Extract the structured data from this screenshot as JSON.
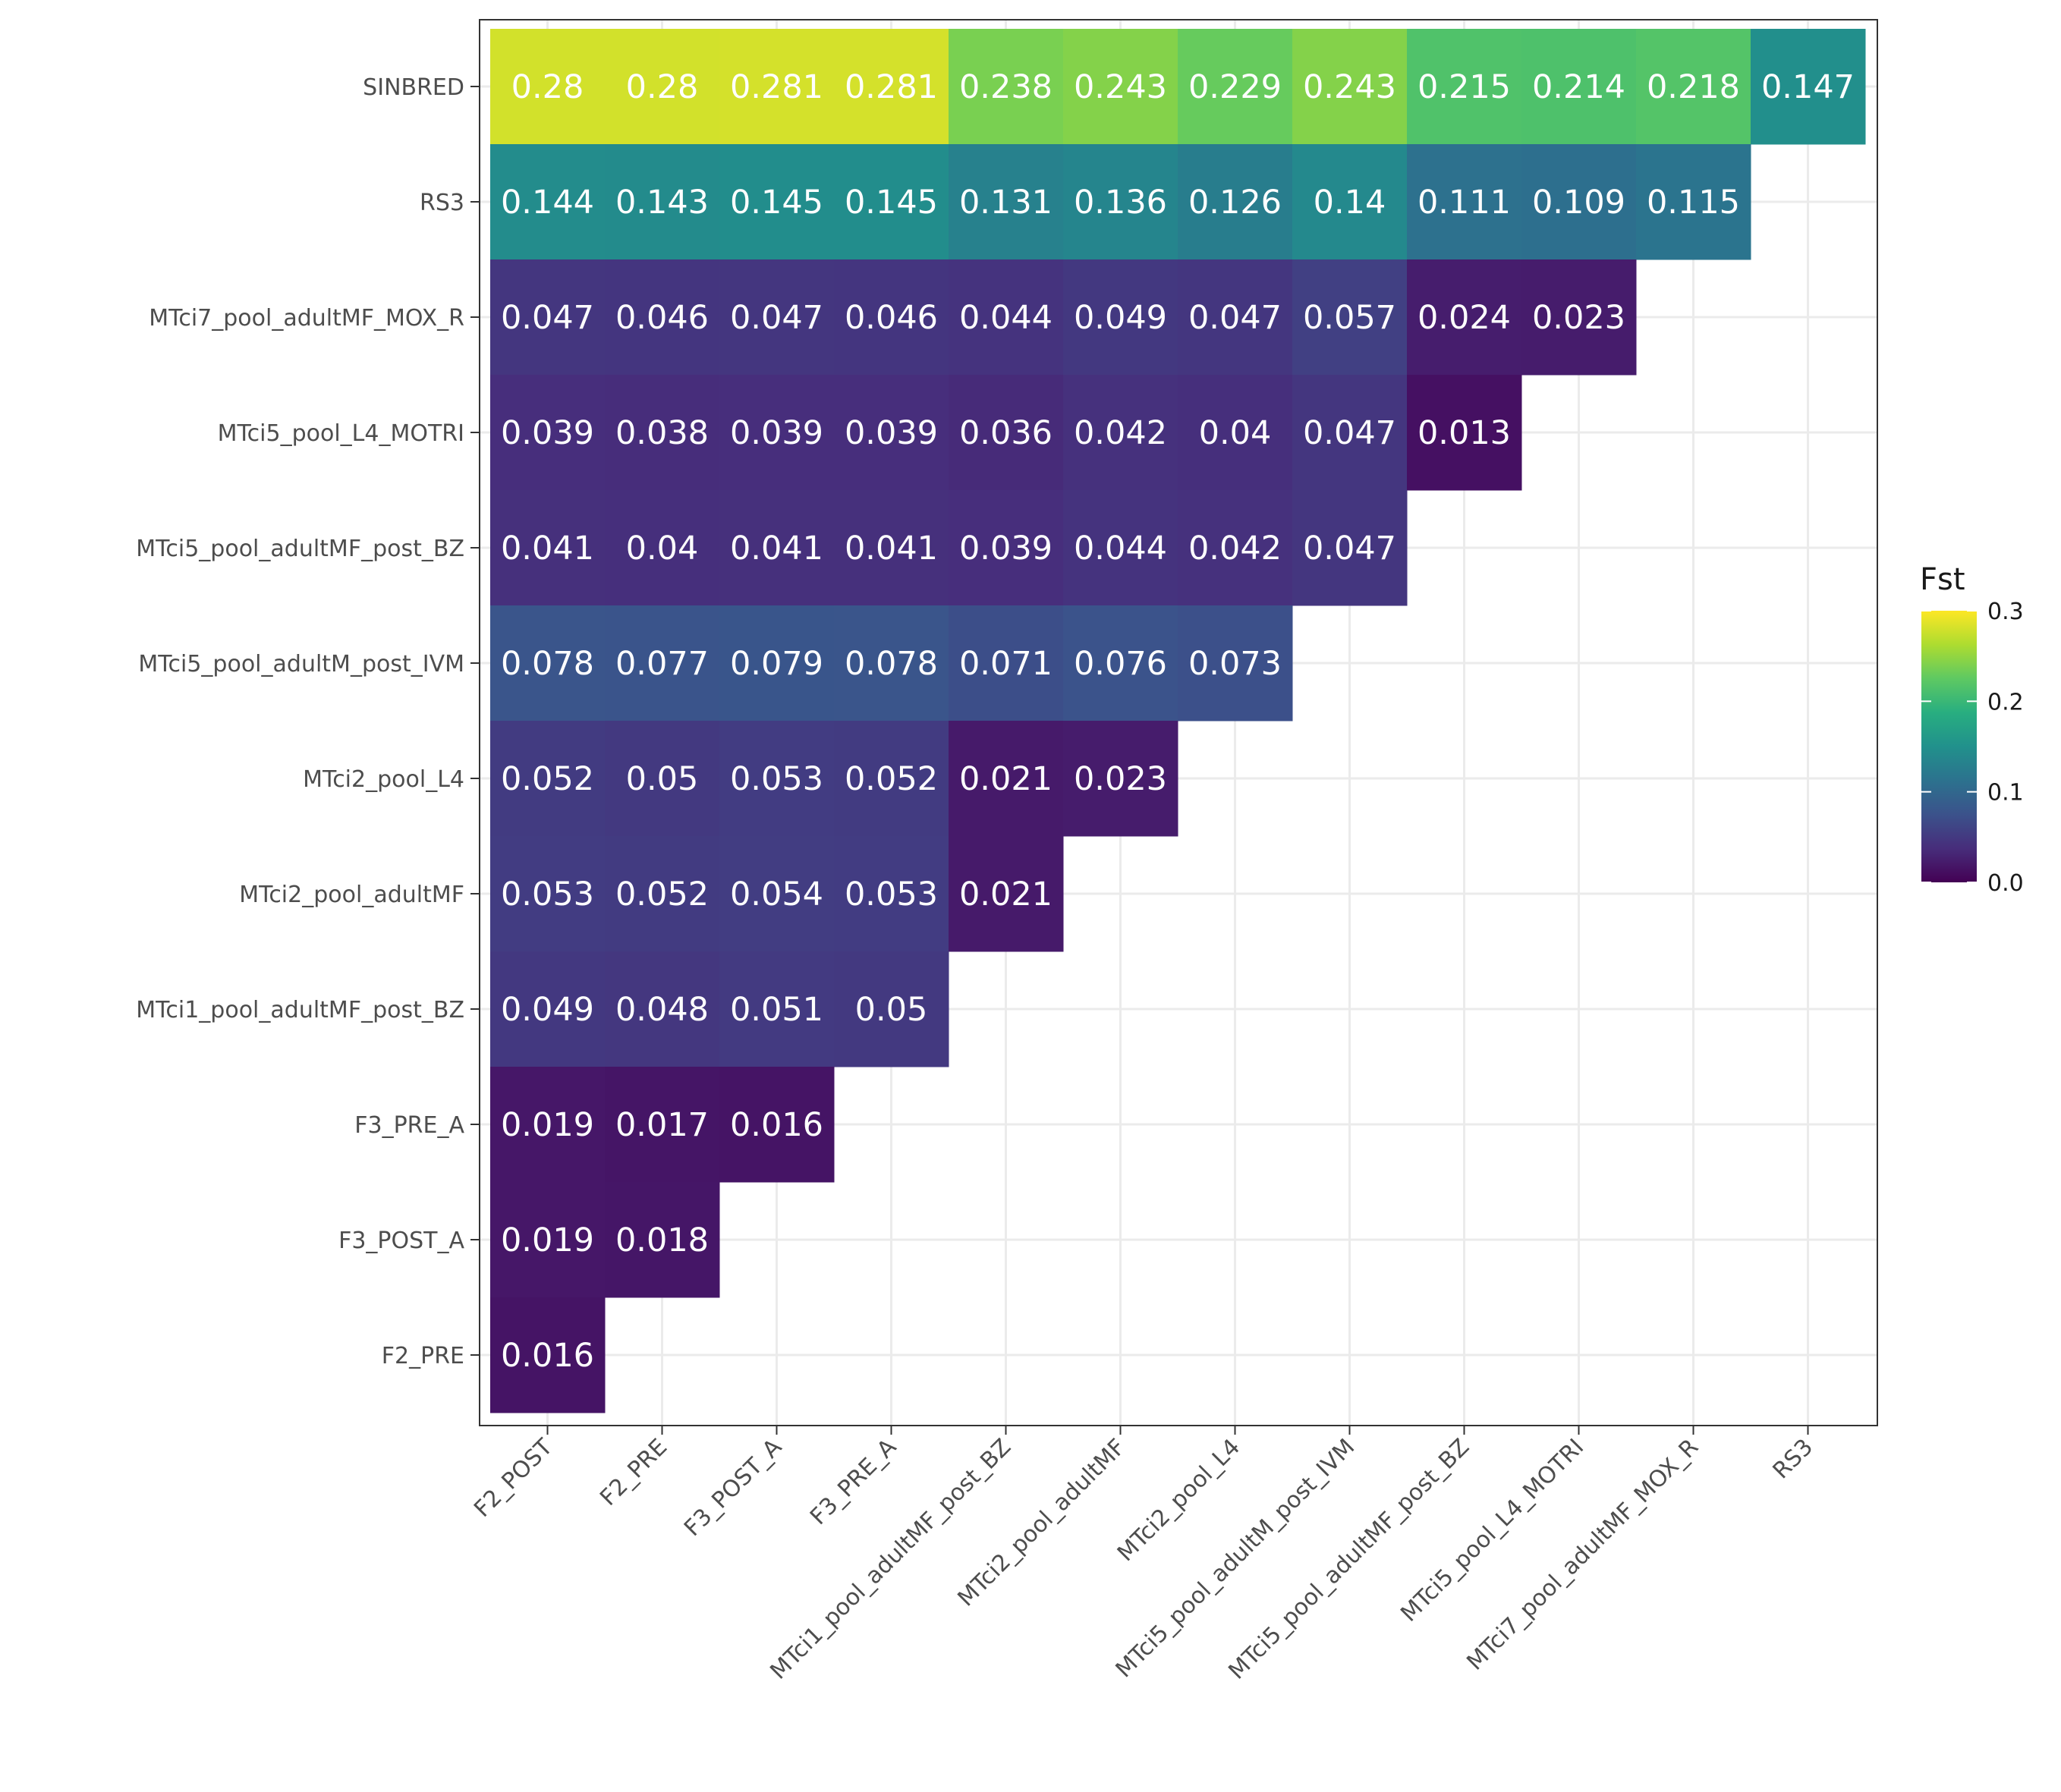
{
  "chart_data": {
    "type": "heatmap",
    "x_categories": [
      "F2_POST",
      "F2_PRE",
      "F3_POST_A",
      "F3_PRE_A",
      "MTci1_pool_adultMF_post_BZ",
      "MTci2_pool_adultMF",
      "MTci2_pool_L4",
      "MTci5_pool_adultM_post_IVM",
      "MTci5_pool_adultMF_post_BZ",
      "MTci5_pool_L4_MOTRI",
      "MTci7_pool_adultMF_MOX_R",
      "RS3"
    ],
    "y_categories": [
      "SINBRED",
      "RS3",
      "MTci7_pool_adultMF_MOX_R",
      "MTci5_pool_L4_MOTRI",
      "MTci5_pool_adultMF_post_BZ",
      "MTci5_pool_adultM_post_IVM",
      "MTci2_pool_L4",
      "MTci2_pool_adultMF",
      "MTci1_pool_adultMF_post_BZ",
      "F3_PRE_A",
      "F3_POST_A",
      "F2_PRE"
    ],
    "rows": [
      {
        "y": "SINBRED",
        "values": [
          "0.28",
          "0.28",
          "0.281",
          "0.281",
          "0.238",
          "0.243",
          "0.229",
          "0.243",
          "0.215",
          "0.214",
          "0.218",
          "0.147"
        ]
      },
      {
        "y": "RS3",
        "values": [
          "0.144",
          "0.143",
          "0.145",
          "0.145",
          "0.131",
          "0.136",
          "0.126",
          "0.14",
          "0.111",
          "0.109",
          "0.115"
        ]
      },
      {
        "y": "MTci7_pool_adultMF_MOX_R",
        "values": [
          "0.047",
          "0.046",
          "0.047",
          "0.046",
          "0.044",
          "0.049",
          "0.047",
          "0.057",
          "0.024",
          "0.023"
        ]
      },
      {
        "y": "MTci5_pool_L4_MOTRI",
        "values": [
          "0.039",
          "0.038",
          "0.039",
          "0.039",
          "0.036",
          "0.042",
          "0.04",
          "0.047",
          "0.013"
        ]
      },
      {
        "y": "MTci5_pool_adultMF_post_BZ",
        "values": [
          "0.041",
          "0.04",
          "0.041",
          "0.041",
          "0.039",
          "0.044",
          "0.042",
          "0.047"
        ]
      },
      {
        "y": "MTci5_pool_adultM_post_IVM",
        "values": [
          "0.078",
          "0.077",
          "0.079",
          "0.078",
          "0.071",
          "0.076",
          "0.073"
        ]
      },
      {
        "y": "MTci2_pool_L4",
        "values": [
          "0.052",
          "0.05",
          "0.053",
          "0.052",
          "0.021",
          "0.023"
        ]
      },
      {
        "y": "MTci2_pool_adultMF",
        "values": [
          "0.053",
          "0.052",
          "0.054",
          "0.053",
          "0.021"
        ]
      },
      {
        "y": "MTci1_pool_adultMF_post_BZ",
        "values": [
          "0.049",
          "0.048",
          "0.051",
          "0.05"
        ]
      },
      {
        "y": "F3_PRE_A",
        "values": [
          "0.019",
          "0.017",
          "0.016"
        ]
      },
      {
        "y": "F3_POST_A",
        "values": [
          "0.019",
          "0.018"
        ]
      },
      {
        "y": "F2_PRE",
        "values": [
          "0.016"
        ]
      }
    ],
    "legend": {
      "title": "Fst",
      "ticks": [
        {
          "value": 0.0,
          "label": "0.0"
        },
        {
          "value": 0.1,
          "label": "0.1"
        },
        {
          "value": 0.2,
          "label": "0.2"
        },
        {
          "value": 0.3,
          "label": "0.3"
        }
      ],
      "range": [
        0,
        0.3
      ],
      "placement": "right"
    },
    "color_scale": "viridis",
    "grid": true
  }
}
